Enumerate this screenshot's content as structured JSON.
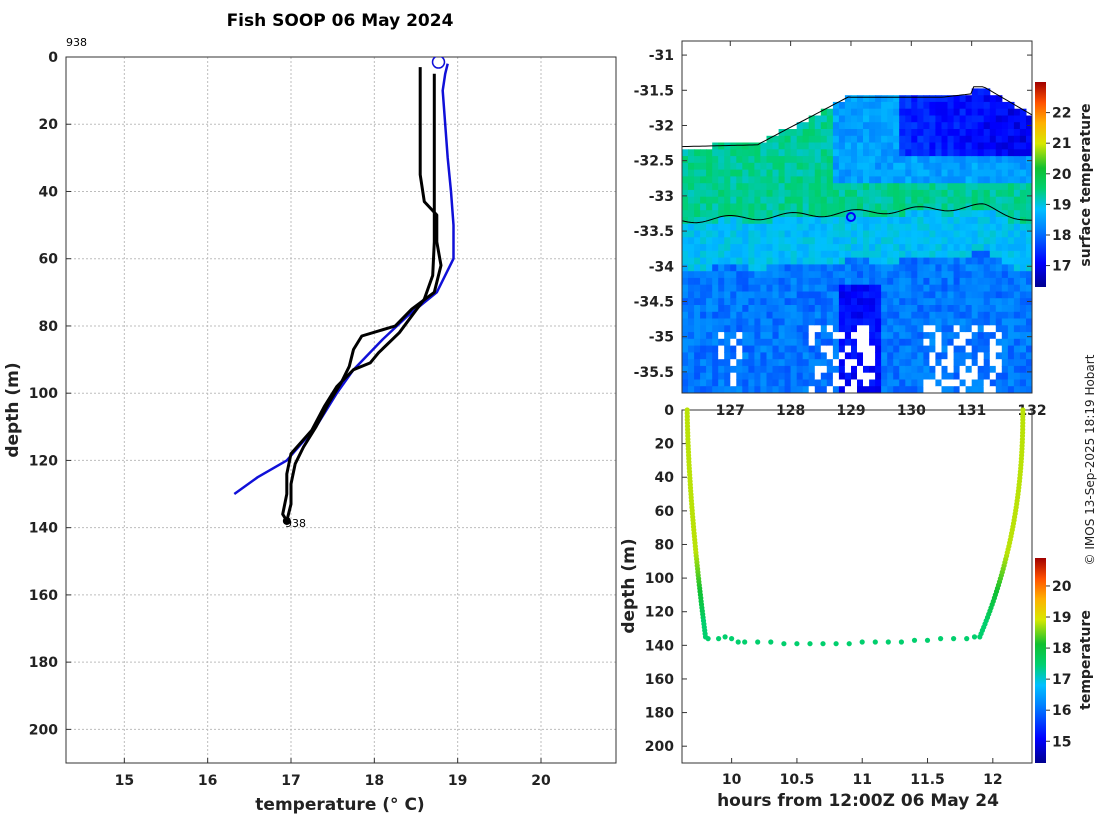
{
  "chart_data": [
    {
      "id": "profile",
      "type": "line",
      "title": "Fish SOOP 06 May 2024",
      "xlabel": "temperature (° C)",
      "ylabel": "depth (m)",
      "xlim": [
        14.3,
        20.9
      ],
      "ylim": [
        210,
        0
      ],
      "xticks": [
        15,
        16,
        17,
        18,
        19,
        20
      ],
      "yticks": [
        0,
        20,
        40,
        60,
        80,
        100,
        120,
        140,
        160,
        180,
        200
      ],
      "top_annotation": "938",
      "end_annotation": "938",
      "series": [
        {
          "name": "blue-profile",
          "color": "#1010d8",
          "points": [
            [
              18.88,
              2
            ],
            [
              18.85,
              5
            ],
            [
              18.82,
              10
            ],
            [
              18.85,
              20
            ],
            [
              18.88,
              30
            ],
            [
              18.92,
              40
            ],
            [
              18.95,
              50
            ],
            [
              18.95,
              60
            ],
            [
              18.75,
              70
            ],
            [
              18.4,
              77
            ],
            [
              18.1,
              84
            ],
            [
              17.75,
              93
            ],
            [
              17.55,
              100
            ],
            [
              17.3,
              110
            ],
            [
              16.95,
              120
            ],
            [
              16.6,
              125
            ],
            [
              16.32,
              130
            ]
          ]
        },
        {
          "name": "black-profile-a",
          "color": "#000000",
          "points": [
            [
              18.55,
              3
            ],
            [
              18.55,
              20
            ],
            [
              18.55,
              35
            ],
            [
              18.6,
              43
            ],
            [
              18.75,
              47
            ],
            [
              18.75,
              55
            ],
            [
              18.8,
              62
            ],
            [
              18.72,
              70
            ],
            [
              18.45,
              75
            ],
            [
              18.25,
              80
            ],
            [
              17.85,
              83
            ],
            [
              17.75,
              87
            ],
            [
              17.7,
              92
            ],
            [
              17.6,
              97
            ],
            [
              17.45,
              103
            ],
            [
              17.3,
              110
            ],
            [
              17.15,
              116
            ],
            [
              17.05,
              121
            ],
            [
              17.0,
              127
            ],
            [
              17.0,
              133
            ],
            [
              16.95,
              138
            ]
          ]
        },
        {
          "name": "black-profile-b",
          "color": "#000000",
          "points": [
            [
              18.72,
              5
            ],
            [
              18.72,
              20
            ],
            [
              18.72,
              40
            ],
            [
              18.72,
              55
            ],
            [
              18.7,
              65
            ],
            [
              18.6,
              72
            ],
            [
              18.45,
              77
            ],
            [
              18.3,
              82
            ],
            [
              18.05,
              88
            ],
            [
              17.95,
              91
            ],
            [
              17.75,
              93
            ],
            [
              17.55,
              98
            ],
            [
              17.4,
              104
            ],
            [
              17.25,
              111
            ],
            [
              17.0,
              118
            ],
            [
              16.95,
              124
            ],
            [
              16.95,
              130
            ],
            [
              16.9,
              136
            ],
            [
              16.95,
              138
            ]
          ]
        }
      ],
      "surface_marker": {
        "x": 18.77,
        "y": 1.5
      },
      "end_marker": {
        "x": 16.95,
        "y": 138
      }
    },
    {
      "id": "map",
      "type": "heatmap",
      "xlabel": "",
      "ylabel": "",
      "xlim": [
        126.2,
        132.0
      ],
      "ylim": [
        -35.8,
        -30.8
      ],
      "xticks": [
        127,
        128,
        129,
        130,
        131,
        132
      ],
      "ytick_labels": [
        "-31",
        "-31.5",
        "-32",
        "-32.5",
        "-33",
        "-33.5",
        "-34",
        "-34.5",
        "-35",
        "-35.5"
      ],
      "ytick_values": [
        -31,
        -31.5,
        -32,
        -32.5,
        -33,
        -33.5,
        -34,
        -34.5,
        -35,
        -35.5
      ],
      "xtick_labels": [
        "127",
        "128",
        "129",
        "130",
        "131",
        "132"
      ],
      "position_marker": {
        "lon": 129.0,
        "lat": -33.3
      },
      "colorbar": {
        "label": "surface temperature",
        "range": [
          16.3,
          23.0
        ],
        "ticks": [
          17,
          18,
          19,
          20,
          21,
          22
        ]
      }
    },
    {
      "id": "section",
      "type": "scatter",
      "xlabel": "hours from 12:00Z 06 May 24",
      "ylabel": "depth (m)",
      "xlim": [
        9.62,
        12.3
      ],
      "ylim": [
        210,
        0
      ],
      "xticks": [
        10,
        10.5,
        11,
        11.5,
        12
      ],
      "xtick_labels": [
        "10",
        "10.5",
        "11",
        "11.5",
        "12"
      ],
      "yticks": [
        0,
        20,
        40,
        60,
        80,
        100,
        120,
        140,
        160,
        180,
        200
      ],
      "colorbar": {
        "label": "temperature",
        "range": [
          14.3,
          20.9
        ],
        "ticks": [
          15,
          16,
          17,
          18,
          19,
          20
        ]
      },
      "descent": {
        "hours": [
          9.66,
          9.8
        ],
        "depth": [
          0,
          135
        ]
      },
      "ascent": {
        "hours": [
          11.9,
          12.23
        ],
        "depth": [
          135,
          0
        ]
      },
      "bottom_hours": [
        9.82,
        9.9,
        9.95,
        10.0,
        10.05,
        10.1,
        10.2,
        10.3,
        10.4,
        10.5,
        10.6,
        10.7,
        10.8,
        10.9,
        11.0,
        11.1,
        11.2,
        11.3,
        11.4,
        11.5,
        11.6,
        11.7,
        11.8,
        11.86
      ],
      "bottom_depth": [
        136,
        136,
        135,
        136,
        138,
        138,
        138,
        138,
        139,
        139,
        139,
        139,
        139,
        139,
        138,
        138,
        138,
        138,
        137,
        137,
        136,
        136,
        136,
        135
      ]
    }
  ],
  "credit": "© IMOS 13-Sep-2025 18:19 Hobart"
}
